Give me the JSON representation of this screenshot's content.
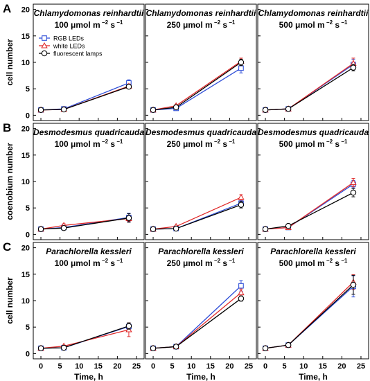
{
  "panel_letters": [
    "A",
    "B",
    "C"
  ],
  "x_axis_label": "Time, h",
  "x_ticks": [
    0,
    5,
    10,
    15,
    20,
    25
  ],
  "y_ticks": [
    0,
    5,
    10,
    15,
    20
  ],
  "unit_prefix": "μmol m",
  "unit_exp1": "−2",
  "unit_mid": " s",
  "unit_exp2": "−1",
  "colors": {
    "rgb": "#2f4fd8",
    "white": "#e02b2b",
    "fluor": "#000000"
  },
  "chart_data": [
    {
      "type": "line",
      "row": "A",
      "organism": "Chlamydomonas reinhardtii",
      "ylabel": "cell number",
      "xlim": [
        -2,
        27
      ],
      "ylim": [
        -1,
        21
      ],
      "legend": {
        "position": "top-left",
        "entries": [
          "RGB LEDs",
          "white LEDs",
          "fluorescent lamps"
        ]
      },
      "panels": [
        {
          "intensity": "100",
          "series": [
            {
              "name": "RGB LEDs",
              "x": [
                0,
                6,
                23
              ],
              "y": [
                1.0,
                1.2,
                6.1
              ],
              "err": [
                0.1,
                0.2,
                0.6
              ]
            },
            {
              "name": "white LEDs",
              "x": [
                0,
                6,
                23
              ],
              "y": [
                1.0,
                1.1,
                5.5
              ],
              "err": [
                0.1,
                0.2,
                0.4
              ]
            },
            {
              "name": "fluorescent lamps",
              "x": [
                0,
                6,
                23
              ],
              "y": [
                1.0,
                1.1,
                5.4
              ],
              "err": [
                0.1,
                0.2,
                0.4
              ]
            }
          ]
        },
        {
          "intensity": "250",
          "series": [
            {
              "name": "RGB LEDs",
              "x": [
                0,
                6,
                23
              ],
              "y": [
                1.0,
                1.3,
                8.9
              ],
              "err": [
                0.1,
                0.2,
                0.9
              ]
            },
            {
              "name": "white LEDs",
              "x": [
                0,
                6,
                23
              ],
              "y": [
                1.0,
                1.8,
                10.2
              ],
              "err": [
                0.1,
                0.2,
                0.6
              ]
            },
            {
              "name": "fluorescent lamps",
              "x": [
                0,
                6,
                23
              ],
              "y": [
                1.0,
                1.5,
                10.0
              ],
              "err": [
                0.1,
                0.2,
                0.6
              ]
            }
          ]
        },
        {
          "intensity": "500",
          "series": [
            {
              "name": "RGB LEDs",
              "x": [
                0,
                6,
                23
              ],
              "y": [
                1.0,
                1.2,
                9.6
              ],
              "err": [
                0.1,
                0.2,
                1.0
              ]
            },
            {
              "name": "white LEDs",
              "x": [
                0,
                6,
                23
              ],
              "y": [
                1.0,
                1.2,
                9.8
              ],
              "err": [
                0.1,
                0.2,
                1.0
              ]
            },
            {
              "name": "fluorescent lamps",
              "x": [
                0,
                6,
                23
              ],
              "y": [
                1.0,
                1.2,
                9.0
              ],
              "err": [
                0.1,
                0.2,
                0.6
              ]
            }
          ]
        }
      ]
    },
    {
      "type": "line",
      "row": "B",
      "organism": "Desmodesmus quadricauda",
      "ylabel": "coenobium number",
      "xlim": [
        -2,
        27
      ],
      "ylim": [
        -1,
        21
      ],
      "panels": [
        {
          "intensity": "100",
          "series": [
            {
              "name": "RGB LEDs",
              "x": [
                0,
                6,
                23
              ],
              "y": [
                1.0,
                1.3,
                3.2
              ],
              "err": [
                0.1,
                0.3,
                0.8
              ]
            },
            {
              "name": "white LEDs",
              "x": [
                0,
                6,
                23
              ],
              "y": [
                1.0,
                1.7,
                3.0
              ],
              "err": [
                0.1,
                0.3,
                0.5
              ]
            },
            {
              "name": "fluorescent lamps",
              "x": [
                0,
                6,
                23
              ],
              "y": [
                1.0,
                1.2,
                3.1
              ],
              "err": [
                0.1,
                0.3,
                0.8
              ]
            }
          ]
        },
        {
          "intensity": "250",
          "series": [
            {
              "name": "RGB LEDs",
              "x": [
                0,
                6,
                23
              ],
              "y": [
                1.0,
                1.1,
                5.9
              ],
              "err": [
                0.1,
                0.2,
                0.6
              ]
            },
            {
              "name": "white LEDs",
              "x": [
                0,
                6,
                23
              ],
              "y": [
                1.0,
                1.5,
                7.0
              ],
              "err": [
                0.1,
                0.2,
                0.5
              ]
            },
            {
              "name": "fluorescent lamps",
              "x": [
                0,
                6,
                23
              ],
              "y": [
                1.0,
                1.1,
                5.6
              ],
              "err": [
                0.1,
                0.2,
                0.6
              ]
            }
          ]
        },
        {
          "intensity": "500",
          "series": [
            {
              "name": "RGB LEDs",
              "x": [
                0,
                6,
                23
              ],
              "y": [
                1.0,
                1.3,
                9.5
              ],
              "err": [
                0.1,
                0.2,
                0.7
              ]
            },
            {
              "name": "white LEDs",
              "x": [
                0,
                6,
                23
              ],
              "y": [
                1.0,
                1.3,
                9.8
              ],
              "err": [
                0.1,
                0.2,
                0.8
              ]
            },
            {
              "name": "fluorescent lamps",
              "x": [
                0,
                6,
                23
              ],
              "y": [
                1.0,
                1.6,
                7.9
              ],
              "err": [
                0.1,
                0.2,
                0.8
              ]
            }
          ]
        }
      ]
    },
    {
      "type": "line",
      "row": "C",
      "organism": "Parachlorella kessleri",
      "ylabel": "cell number",
      "xlim": [
        -2,
        27
      ],
      "ylim": [
        -1,
        21
      ],
      "panels": [
        {
          "intensity": "100",
          "series": [
            {
              "name": "RGB LEDs",
              "x": [
                0,
                6,
                23
              ],
              "y": [
                1.0,
                1.1,
                5.1
              ],
              "err": [
                0.1,
                0.2,
                0.6
              ]
            },
            {
              "name": "white LEDs",
              "x": [
                0,
                6,
                23
              ],
              "y": [
                1.0,
                1.4,
                4.5
              ],
              "err": [
                0.1,
                0.2,
                1.3
              ]
            },
            {
              "name": "fluorescent lamps",
              "x": [
                0,
                6,
                23
              ],
              "y": [
                1.0,
                1.1,
                5.2
              ],
              "err": [
                0.1,
                0.2,
                0.6
              ]
            }
          ]
        },
        {
          "intensity": "250",
          "series": [
            {
              "name": "RGB LEDs",
              "x": [
                0,
                6,
                23
              ],
              "y": [
                1.0,
                1.3,
                12.8
              ],
              "err": [
                0.1,
                0.2,
                1.0
              ]
            },
            {
              "name": "white LEDs",
              "x": [
                0,
                6,
                23
              ],
              "y": [
                1.0,
                1.3,
                11.5
              ],
              "err": [
                0.1,
                0.2,
                0.7
              ]
            },
            {
              "name": "fluorescent lamps",
              "x": [
                0,
                6,
                23
              ],
              "y": [
                1.0,
                1.3,
                10.4
              ],
              "err": [
                0.1,
                0.2,
                0.5
              ]
            }
          ]
        },
        {
          "intensity": "500",
          "series": [
            {
              "name": "RGB LEDs",
              "x": [
                0,
                6,
                23
              ],
              "y": [
                1.0,
                1.6,
                12.7
              ],
              "err": [
                0.1,
                0.2,
                2.0
              ]
            },
            {
              "name": "white LEDs",
              "x": [
                0,
                6,
                23
              ],
              "y": [
                1.0,
                1.6,
                13.5
              ],
              "err": [
                0.1,
                0.2,
                1.4
              ]
            },
            {
              "name": "fluorescent lamps",
              "x": [
                0,
                6,
                23
              ],
              "y": [
                1.0,
                1.6,
                13.0
              ],
              "err": [
                0.1,
                0.2,
                1.8
              ]
            }
          ]
        }
      ]
    }
  ]
}
